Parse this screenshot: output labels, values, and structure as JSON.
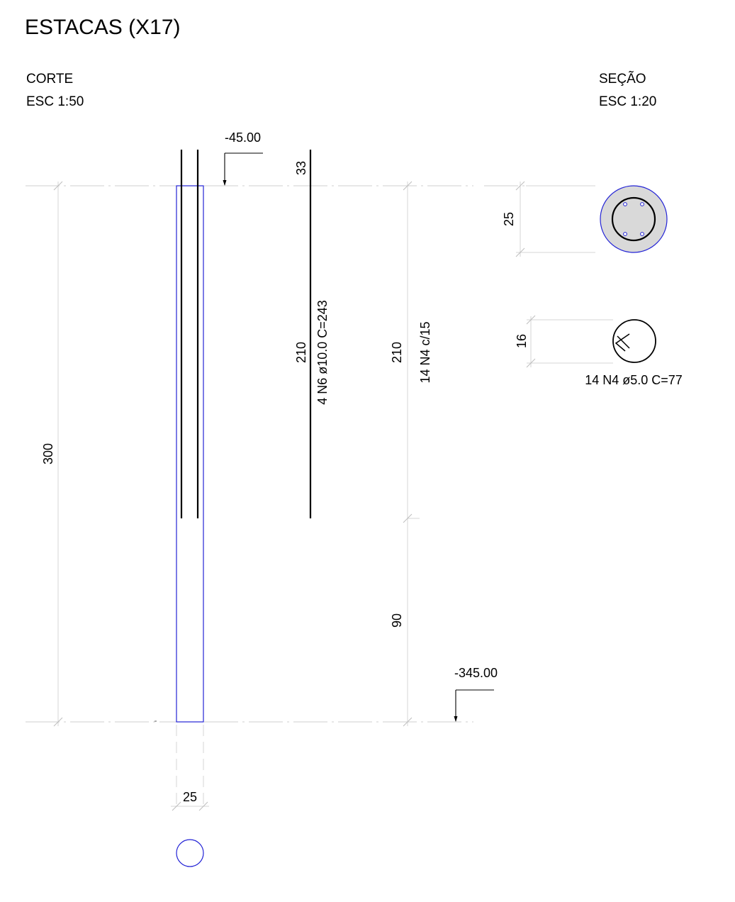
{
  "title": "ESTACAS (X17)",
  "corte": {
    "label": "CORTE",
    "scale": "ESC 1:50"
  },
  "secao": {
    "label": "SEÇÃO",
    "scale": "ESC 1:20"
  },
  "levels": {
    "top": "-45.00",
    "bottom": "-345.00"
  },
  "dimensions": {
    "total_length": "300",
    "bar_top_extension": "33",
    "bar_length": "210",
    "stirrup_zone": "210",
    "lower_zone": "90",
    "pile_diameter": "25",
    "section_diameter": "25",
    "stirrup_diameter": "16"
  },
  "reinforcement": {
    "longitudinal": "4 N6 ø10.0 C=243",
    "stirrup_spacing": "14 N4 c/15",
    "stirrup": "14 N4 ø5.0 C=77"
  },
  "colors": {
    "concrete_outline": "#2323d6",
    "rebar": "#000000",
    "section_fill": "#d9d9d9",
    "dimension_line": "#d4d4d4"
  }
}
